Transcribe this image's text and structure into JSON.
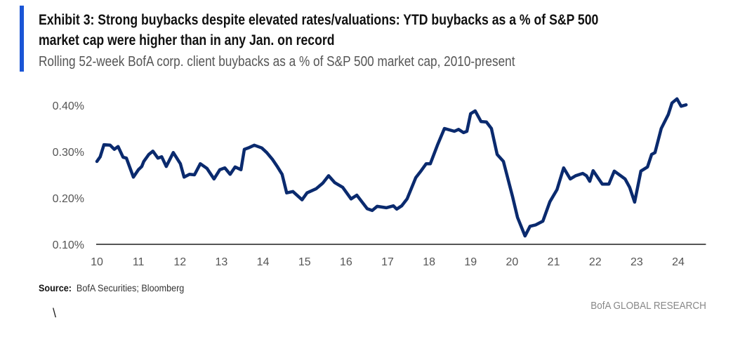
{
  "colors": {
    "accent_bar": "#1a55d6",
    "line": "#0a2a6e",
    "axis": "#555555"
  },
  "header": {
    "title": "Exhibit 3:  Strong buybacks despite elevated rates/valuations: YTD buybacks as a % of S&P 500 market cap were higher than in any Jan. on record",
    "title_line1": "Exhibit 3:  Strong buybacks despite elevated rates/valuations: YTD buybacks as a % of S&P 500",
    "title_line2": "market cap were higher than in any Jan. on record",
    "subtitle": "Rolling 52-week BofA corp. client buybacks as a % of S&P 500 market cap, 2010-present"
  },
  "footer": {
    "source_label": "Source:",
    "source_text": "BofA Securities; Bloomberg",
    "brand": "BofA GLOBAL RESEARCH",
    "stray_mark": "\\"
  },
  "chart_data": {
    "type": "line",
    "title": "Rolling 52-week BofA corp. client buybacks as a % of S&P 500 market cap, 2010-present",
    "xlabel": "",
    "ylabel": "",
    "xlim": [
      10,
      24.65
    ],
    "ylim": [
      0.1,
      0.4
    ],
    "grid": false,
    "x_ticks": [
      10,
      11,
      12,
      13,
      14,
      15,
      16,
      17,
      18,
      19,
      20,
      21,
      22,
      23,
      24
    ],
    "x_tick_labels": [
      "10",
      "11",
      "12",
      "13",
      "14",
      "15",
      "16",
      "17",
      "18",
      "19",
      "20",
      "21",
      "22",
      "23",
      "24"
    ],
    "y_ticks": [
      0.1,
      0.2,
      0.3,
      0.4
    ],
    "y_tick_labels": [
      "0.10%",
      "0.20%",
      "0.30%",
      "0.40%"
    ],
    "series": [
      {
        "name": "Buybacks % of S&P 500 market cap",
        "x": [
          10.0,
          10.08,
          10.17,
          10.32,
          10.42,
          10.51,
          10.63,
          10.71,
          10.88,
          11.0,
          11.08,
          11.13,
          11.25,
          11.35,
          11.47,
          11.56,
          11.67,
          11.84,
          12.01,
          12.1,
          12.23,
          12.35,
          12.49,
          12.65,
          12.82,
          12.96,
          13.08,
          13.21,
          13.33,
          13.47,
          13.55,
          13.67,
          13.79,
          13.97,
          14.09,
          14.23,
          14.35,
          14.46,
          14.57,
          14.72,
          14.94,
          15.06,
          15.28,
          15.44,
          15.58,
          15.73,
          15.92,
          16.12,
          16.26,
          16.51,
          16.63,
          16.75,
          16.97,
          17.14,
          17.22,
          17.34,
          17.47,
          17.68,
          17.81,
          17.93,
          18.03,
          18.2,
          18.37,
          18.61,
          18.71,
          18.83,
          18.91,
          19.0,
          19.11,
          19.25,
          19.38,
          19.5,
          19.64,
          19.79,
          20.01,
          20.13,
          20.31,
          20.43,
          20.57,
          20.74,
          20.91,
          21.08,
          21.24,
          21.4,
          21.53,
          21.7,
          21.79,
          21.87,
          21.95,
          22.17,
          22.33,
          22.46,
          22.72,
          22.83,
          22.95,
          23.1,
          23.26,
          23.36,
          23.44,
          23.59,
          23.76,
          23.85,
          23.97,
          24.07,
          24.19
        ],
        "y": [
          0.279,
          0.289,
          0.315,
          0.314,
          0.305,
          0.311,
          0.288,
          0.286,
          0.245,
          0.261,
          0.268,
          0.279,
          0.294,
          0.301,
          0.286,
          0.289,
          0.268,
          0.298,
          0.274,
          0.245,
          0.251,
          0.25,
          0.274,
          0.264,
          0.241,
          0.261,
          0.265,
          0.251,
          0.267,
          0.261,
          0.305,
          0.309,
          0.314,
          0.308,
          0.298,
          0.283,
          0.267,
          0.251,
          0.211,
          0.214,
          0.196,
          0.211,
          0.22,
          0.232,
          0.248,
          0.233,
          0.223,
          0.198,
          0.206,
          0.177,
          0.173,
          0.182,
          0.179,
          0.183,
          0.176,
          0.183,
          0.198,
          0.244,
          0.259,
          0.274,
          0.274,
          0.314,
          0.35,
          0.344,
          0.348,
          0.341,
          0.344,
          0.382,
          0.388,
          0.365,
          0.364,
          0.35,
          0.294,
          0.279,
          0.203,
          0.158,
          0.118,
          0.139,
          0.142,
          0.15,
          0.192,
          0.218,
          0.265,
          0.241,
          0.248,
          0.253,
          0.248,
          0.236,
          0.259,
          0.23,
          0.23,
          0.258,
          0.241,
          0.223,
          0.191,
          0.258,
          0.267,
          0.294,
          0.298,
          0.35,
          0.38,
          0.405,
          0.414,
          0.398,
          0.401
        ]
      }
    ]
  }
}
